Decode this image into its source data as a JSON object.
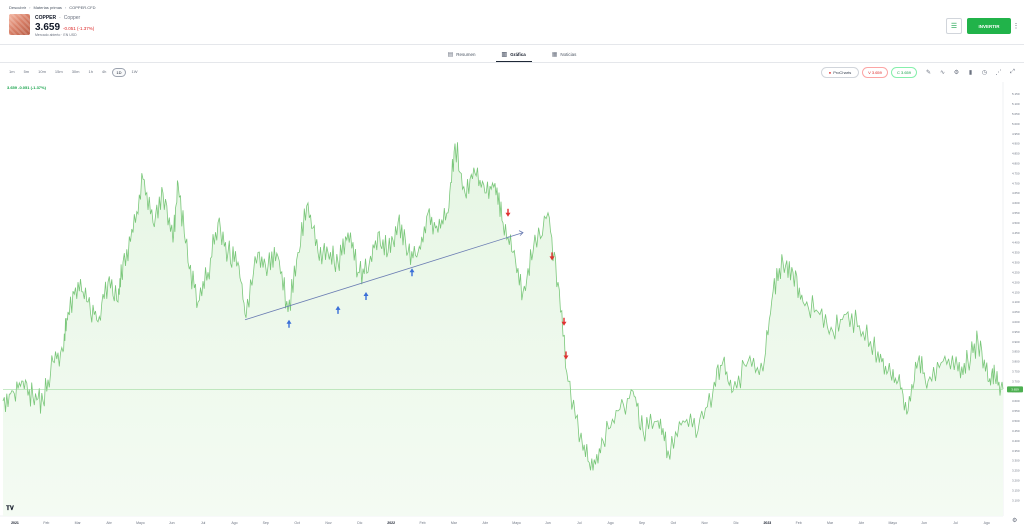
{
  "breadcrumb": [
    "Descubrir",
    "Materias primas",
    "COPPER.CFD"
  ],
  "asset": {
    "symbol": "COPPER",
    "name": "Copper",
    "price": "3.659",
    "change": "-0.051 (-1.37%)",
    "status": "Mercado abierto · EN USD"
  },
  "header": {
    "invest_label": "INVERTIR",
    "list_icon": "list-icon",
    "more_icon": "kebab-menu-icon"
  },
  "tabs": [
    {
      "label": "Resumen",
      "icon": "summary-icon"
    },
    {
      "label": "Gráfica",
      "icon": "chart-icon",
      "active": true
    },
    {
      "label": "Noticias",
      "icon": "news-icon"
    }
  ],
  "timeframes": [
    "1m",
    "5m",
    "10m",
    "15m",
    "30m",
    "1h",
    "4h",
    "1D",
    "1W"
  ],
  "active_timeframe": "1D",
  "toolbar": {
    "prochart_label": "ProCharts",
    "sell_label": "V 3.659",
    "buy_label": "C 3.659",
    "icons": [
      "draw-icon",
      "indicator-icon",
      "settings-icon",
      "bars-icon",
      "clock-icon",
      "share-icon",
      "fullscreen-icon"
    ]
  },
  "legend": "3.659 -0.051 (-1.37%)",
  "chart_data": {
    "type": "area",
    "x_labels": [
      "2021",
      "Feb",
      "Mar",
      "Abr",
      "Mayo",
      "Jun",
      "Jul",
      "Ago",
      "Sep",
      "Oct",
      "Nov",
      "Dic",
      "2022",
      "Feb",
      "Mar",
      "Abr",
      "Mayo",
      "Jun",
      "Jul",
      "Ago",
      "Sep",
      "Oct",
      "Nov",
      "Dic",
      "2023",
      "Feb",
      "Mar",
      "Abr",
      "Mayo",
      "Jun",
      "Jul",
      "Ago"
    ],
    "x_label_bold": [
      "2021",
      "2022",
      "2023"
    ],
    "y_ticks": [
      "5.150",
      "5.100",
      "5.050",
      "5.000",
      "4.950",
      "4.900",
      "4.850",
      "4.800",
      "4.750",
      "4.700",
      "4.650",
      "4.600",
      "4.550",
      "4.500",
      "4.450",
      "4.400",
      "4.350",
      "4.300",
      "4.250",
      "4.200",
      "4.150",
      "4.100",
      "4.050",
      "4.000",
      "3.950",
      "3.900",
      "3.850",
      "3.800",
      "3.750",
      "3.700",
      "3.650",
      "3.600",
      "3.550",
      "3.500",
      "3.450",
      "3.400",
      "3.350",
      "3.300",
      "3.250",
      "3.200",
      "3.150",
      "3.100"
    ],
    "ylim": [
      3.05,
      5.19
    ],
    "last_value": "3.659",
    "line_color": "#7ac77a",
    "fill_color": "#e6f6e4",
    "trendline": {
      "from": [
        0.242,
        4.01
      ],
      "to": [
        0.52,
        4.45
      ],
      "color": "#6b7db3"
    },
    "up_arrows": [
      [
        0.286,
        3.99
      ],
      [
        0.335,
        4.06
      ],
      [
        0.363,
        4.13
      ],
      [
        0.409,
        4.25
      ]
    ],
    "down_arrows": [
      [
        0.505,
        4.55
      ],
      [
        0.549,
        4.33
      ],
      [
        0.561,
        4.0
      ],
      [
        0.563,
        3.83
      ]
    ],
    "series": [
      {
        "t": 0.0,
        "v": 3.6
      },
      {
        "t": 0.01,
        "v": 3.65
      },
      {
        "t": 0.02,
        "v": 3.7
      },
      {
        "t": 0.03,
        "v": 3.62
      },
      {
        "t": 0.04,
        "v": 3.6
      },
      {
        "t": 0.05,
        "v": 3.8
      },
      {
        "t": 0.06,
        "v": 3.85
      },
      {
        "t": 0.065,
        "v": 4.05
      },
      {
        "t": 0.075,
        "v": 4.2
      },
      {
        "t": 0.085,
        "v": 4.1
      },
      {
        "t": 0.095,
        "v": 4.0
      },
      {
        "t": 0.105,
        "v": 4.2
      },
      {
        "t": 0.115,
        "v": 4.1
      },
      {
        "t": 0.12,
        "v": 4.3
      },
      {
        "t": 0.13,
        "v": 4.45
      },
      {
        "t": 0.14,
        "v": 4.72
      },
      {
        "t": 0.15,
        "v": 4.5
      },
      {
        "t": 0.16,
        "v": 4.65
      },
      {
        "t": 0.17,
        "v": 4.4
      },
      {
        "t": 0.175,
        "v": 4.7
      },
      {
        "t": 0.185,
        "v": 4.3
      },
      {
        "t": 0.195,
        "v": 4.1
      },
      {
        "t": 0.205,
        "v": 4.25
      },
      {
        "t": 0.215,
        "v": 4.5
      },
      {
        "t": 0.225,
        "v": 4.35
      },
      {
        "t": 0.235,
        "v": 4.3
      },
      {
        "t": 0.243,
        "v": 4.02
      },
      {
        "t": 0.255,
        "v": 4.35
      },
      {
        "t": 0.265,
        "v": 4.28
      },
      {
        "t": 0.275,
        "v": 4.33
      },
      {
        "t": 0.285,
        "v": 4.05
      },
      {
        "t": 0.295,
        "v": 4.35
      },
      {
        "t": 0.305,
        "v": 4.6
      },
      {
        "t": 0.315,
        "v": 4.35
      },
      {
        "t": 0.325,
        "v": 4.35
      },
      {
        "t": 0.335,
        "v": 4.3
      },
      {
        "t": 0.345,
        "v": 4.45
      },
      {
        "t": 0.355,
        "v": 4.25
      },
      {
        "t": 0.365,
        "v": 4.25
      },
      {
        "t": 0.375,
        "v": 4.45
      },
      {
        "t": 0.385,
        "v": 4.35
      },
      {
        "t": 0.395,
        "v": 4.5
      },
      {
        "t": 0.405,
        "v": 4.35
      },
      {
        "t": 0.415,
        "v": 4.35
      },
      {
        "t": 0.425,
        "v": 4.55
      },
      {
        "t": 0.435,
        "v": 4.45
      },
      {
        "t": 0.445,
        "v": 4.55
      },
      {
        "t": 0.452,
        "v": 4.9
      },
      {
        "t": 0.462,
        "v": 4.65
      },
      {
        "t": 0.472,
        "v": 4.75
      },
      {
        "t": 0.482,
        "v": 4.65
      },
      {
        "t": 0.492,
        "v": 4.7
      },
      {
        "t": 0.5,
        "v": 4.5
      },
      {
        "t": 0.51,
        "v": 4.35
      },
      {
        "t": 0.52,
        "v": 4.15
      },
      {
        "t": 0.53,
        "v": 4.35
      },
      {
        "t": 0.545,
        "v": 4.55
      },
      {
        "t": 0.555,
        "v": 4.2
      },
      {
        "t": 0.565,
        "v": 3.7
      },
      {
        "t": 0.58,
        "v": 3.35
      },
      {
        "t": 0.59,
        "v": 3.25
      },
      {
        "t": 0.6,
        "v": 3.4
      },
      {
        "t": 0.615,
        "v": 3.55
      },
      {
        "t": 0.63,
        "v": 3.65
      },
      {
        "t": 0.64,
        "v": 3.45
      },
      {
        "t": 0.655,
        "v": 3.5
      },
      {
        "t": 0.665,
        "v": 3.35
      },
      {
        "t": 0.68,
        "v": 3.5
      },
      {
        "t": 0.695,
        "v": 3.45
      },
      {
        "t": 0.71,
        "v": 3.65
      },
      {
        "t": 0.72,
        "v": 3.8
      },
      {
        "t": 0.73,
        "v": 3.65
      },
      {
        "t": 0.745,
        "v": 3.8
      },
      {
        "t": 0.76,
        "v": 3.75
      },
      {
        "t": 0.77,
        "v": 4.15
      },
      {
        "t": 0.78,
        "v": 4.3
      },
      {
        "t": 0.79,
        "v": 4.25
      },
      {
        "t": 0.8,
        "v": 4.1
      },
      {
        "t": 0.815,
        "v": 4.05
      },
      {
        "t": 0.83,
        "v": 3.95
      },
      {
        "t": 0.845,
        "v": 4.05
      },
      {
        "t": 0.86,
        "v": 3.95
      },
      {
        "t": 0.875,
        "v": 3.85
      },
      {
        "t": 0.885,
        "v": 3.75
      },
      {
        "t": 0.895,
        "v": 3.7
      },
      {
        "t": 0.905,
        "v": 3.55
      },
      {
        "t": 0.915,
        "v": 3.8
      },
      {
        "t": 0.925,
        "v": 3.7
      },
      {
        "t": 0.94,
        "v": 3.8
      },
      {
        "t": 0.955,
        "v": 3.75
      },
      {
        "t": 0.965,
        "v": 3.8
      },
      {
        "t": 0.975,
        "v": 3.9
      },
      {
        "t": 0.985,
        "v": 3.7
      },
      {
        "t": 0.992,
        "v": 3.72
      },
      {
        "t": 1.0,
        "v": 3.66
      }
    ]
  }
}
